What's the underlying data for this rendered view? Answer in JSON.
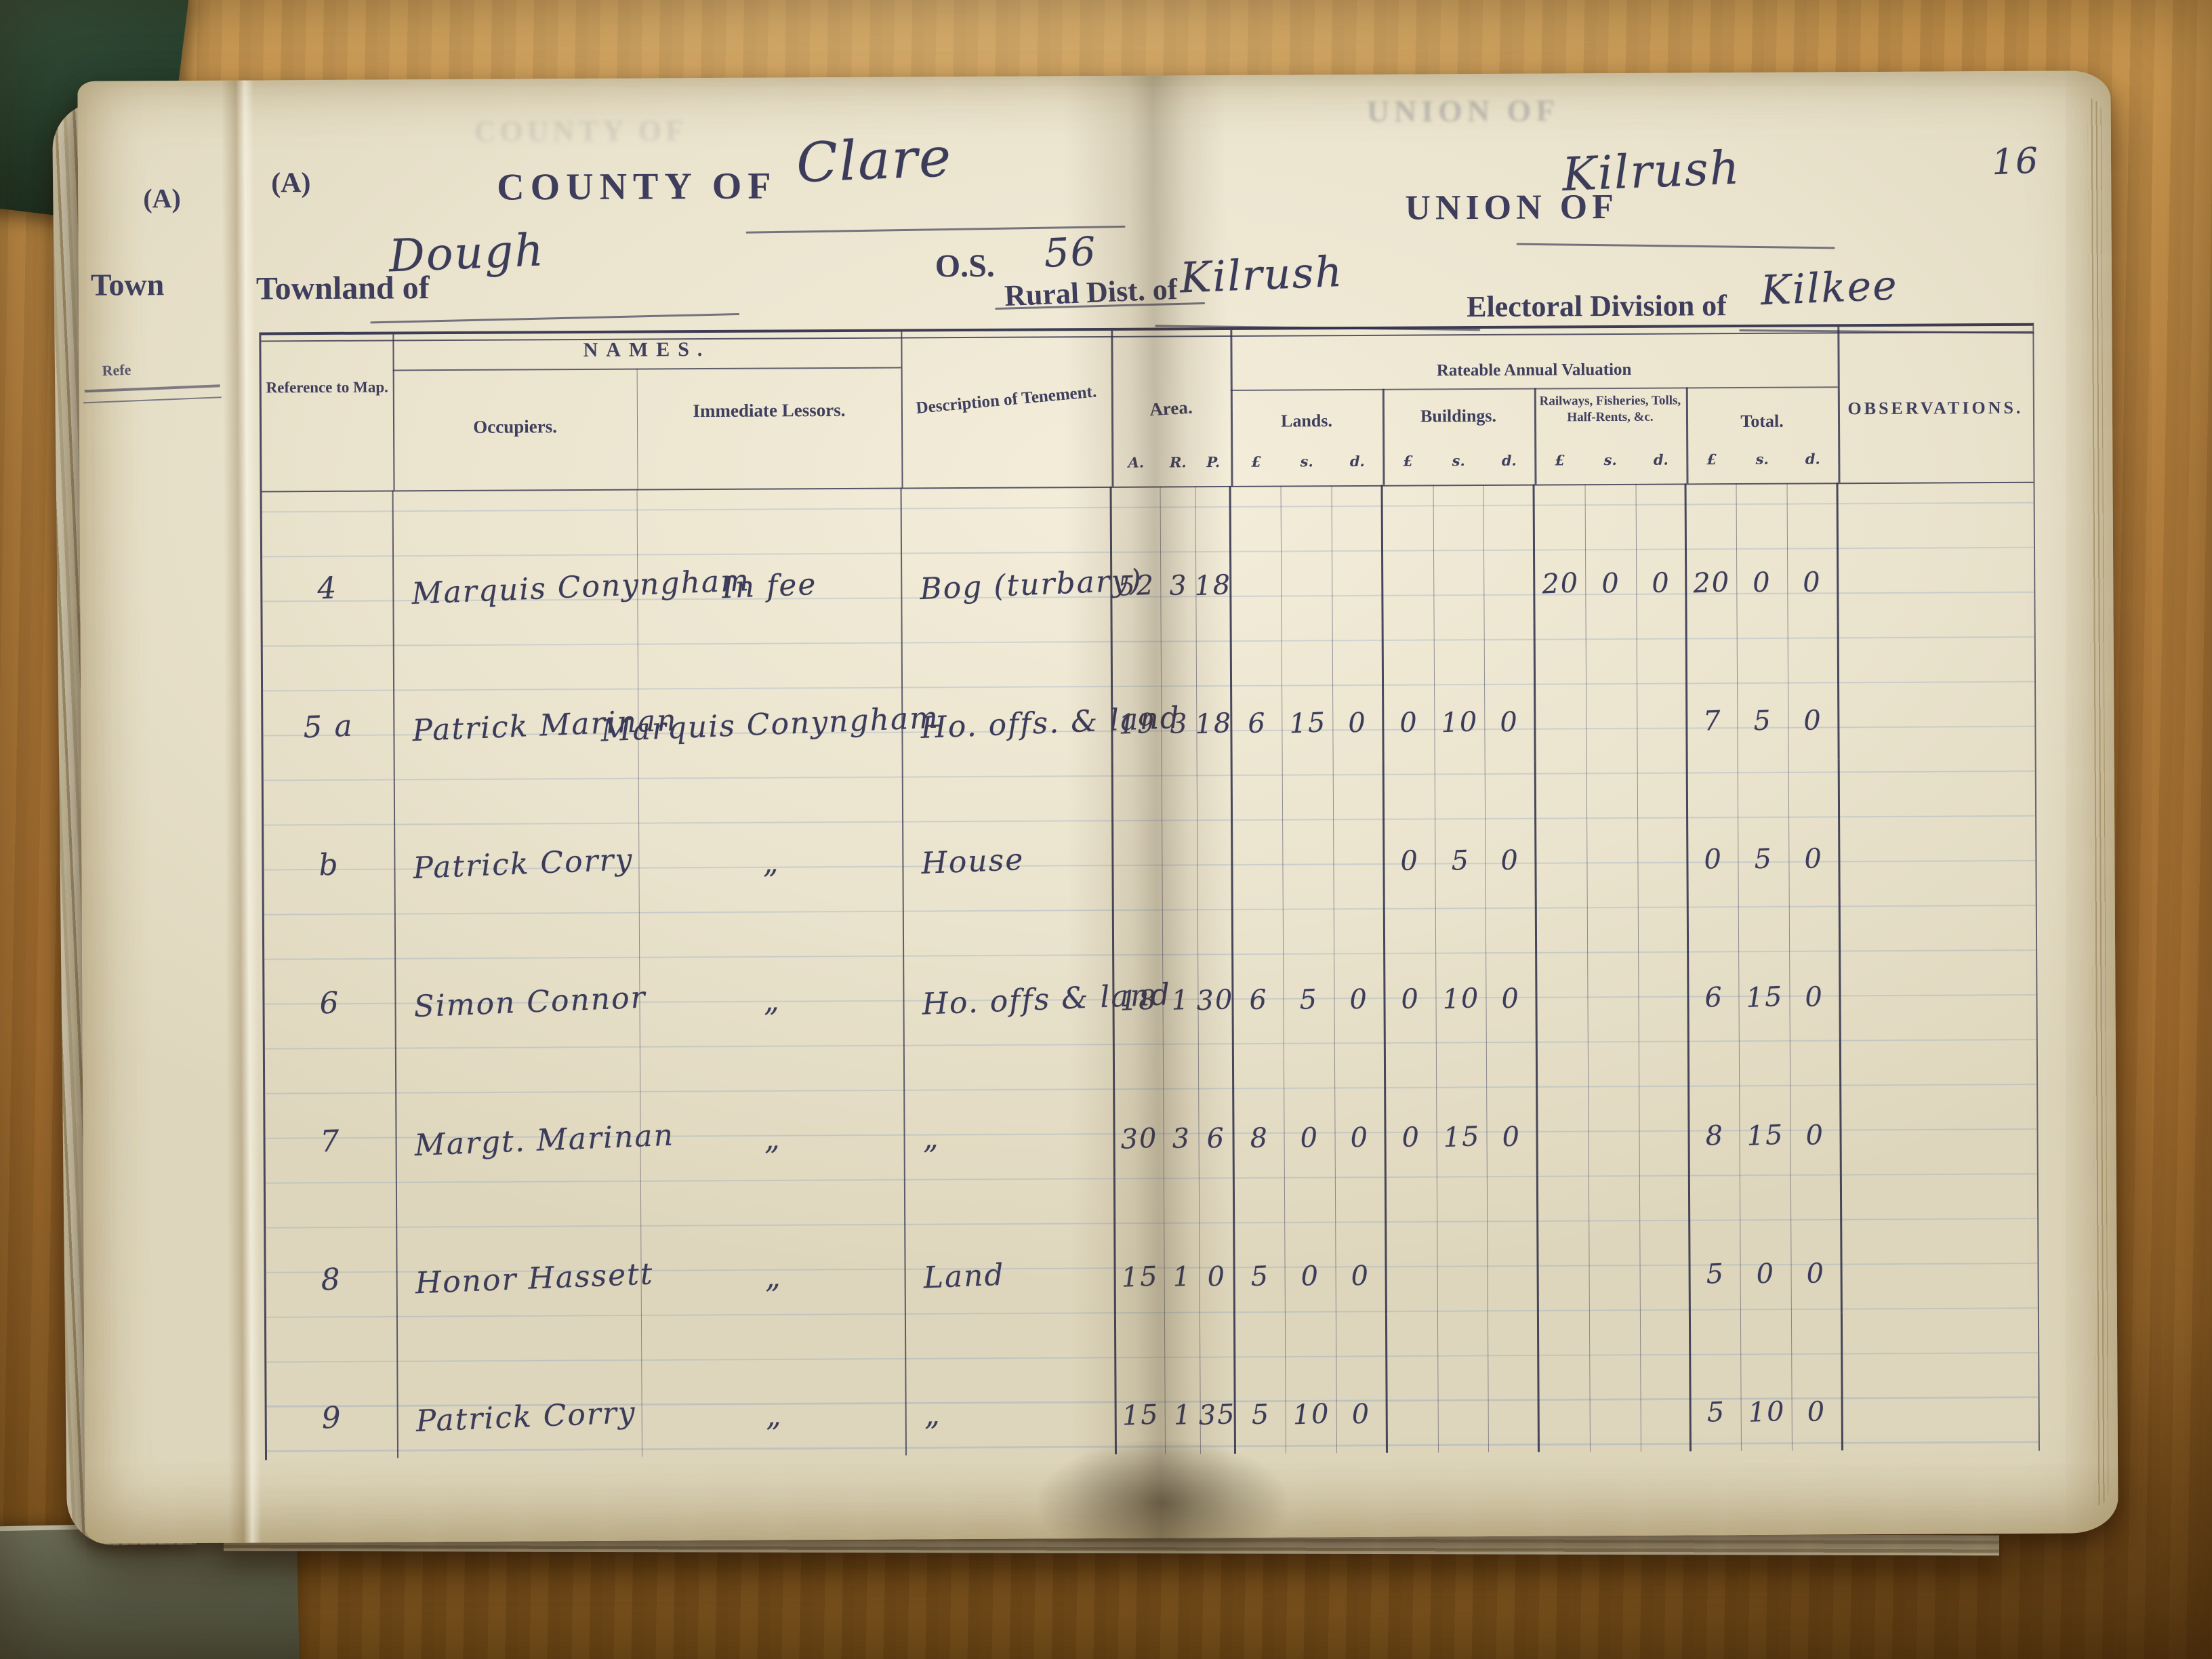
{
  "photo": {
    "page_number": "16"
  },
  "prev_page_fragments": {
    "section_mark": "(A)",
    "townland_cut": "Town",
    "reference_cut": "Refe"
  },
  "ghosts": {
    "union_showthrough": "UNION OF",
    "county_showthrough": "COUNTY OF"
  },
  "header": {
    "section_mark": "(A)",
    "county_label": "COUNTY OF",
    "county_value": "Clare",
    "union_label": "UNION OF",
    "union_value": "Kilrush",
    "townland_label": "Townland of",
    "townland_value": "Dough",
    "os_label": "O.S.",
    "os_value": "56",
    "rural_district_label": "Rural Dist. of",
    "rural_district_value": "Kilrush",
    "electoral_division_label": "Electoral Division of",
    "electoral_division_value": "Kilkee"
  },
  "table": {
    "names_group_label": "NAMES.",
    "valuation_group_label": "Rateable Annual Valuation",
    "col_reference": "Reference to Map.",
    "col_occupiers": "Occupiers.",
    "col_lessors": "Immediate Lessors.",
    "col_description": "Description of Tenement.",
    "col_area": "Area.",
    "area_units": {
      "a": "A.",
      "r": "R.",
      "p": "P."
    },
    "col_lands": "Lands.",
    "col_buildings": "Buildings.",
    "col_railways": "Railways, Fisheries, Tolls, Half-Rents, &c.",
    "col_total": "Total.",
    "money_units": {
      "pounds": "£",
      "shillings": "s.",
      "pence": "d."
    },
    "col_observations": "OBSERVATIONS.",
    "rows": [
      {
        "ref": "4",
        "occupier": "Marquis Conyngham",
        "lessor": "In fee",
        "description": "Bog (turbary)",
        "area": [
          "52",
          "3",
          "18"
        ],
        "lands": [
          "",
          "",
          ""
        ],
        "buildings": [
          "",
          "",
          ""
        ],
        "railways": [
          "20",
          "0",
          "0"
        ],
        "total": [
          "20",
          "0",
          "0"
        ],
        "obs": ""
      },
      {
        "ref": "5 a",
        "occupier": "Patrick Marinan",
        "lessor": "Marquis Conyngham",
        "description": "Ho. offs. & land",
        "area": [
          "19",
          "3",
          "18"
        ],
        "lands": [
          "6",
          "15",
          "0"
        ],
        "buildings": [
          "0",
          "10",
          "0"
        ],
        "railways": [
          "",
          "",
          ""
        ],
        "total": [
          "7",
          "5",
          "0"
        ],
        "obs": ""
      },
      {
        "ref": "b",
        "occupier": "Patrick Corry",
        "lessor": "„",
        "description": "House",
        "area": [
          "",
          "",
          ""
        ],
        "lands": [
          "",
          "",
          ""
        ],
        "buildings": [
          "0",
          "5",
          "0"
        ],
        "railways": [
          "",
          "",
          ""
        ],
        "total": [
          "0",
          "5",
          "0"
        ],
        "obs": ""
      },
      {
        "ref": "6",
        "occupier": "Simon Connor",
        "lessor": "„",
        "description": "Ho. offs & land",
        "area": [
          "18",
          "1",
          "30"
        ],
        "lands": [
          "6",
          "5",
          "0"
        ],
        "buildings": [
          "0",
          "10",
          "0"
        ],
        "railways": [
          "",
          "",
          ""
        ],
        "total": [
          "6",
          "15",
          "0"
        ],
        "obs": ""
      },
      {
        "ref": "7",
        "occupier": "Margt. Marinan",
        "lessor": "„",
        "description": "„",
        "area": [
          "30",
          "3",
          "6"
        ],
        "lands": [
          "8",
          "0",
          "0"
        ],
        "buildings": [
          "0",
          "15",
          "0"
        ],
        "railways": [
          "",
          "",
          ""
        ],
        "total": [
          "8",
          "15",
          "0"
        ],
        "obs": ""
      },
      {
        "ref": "8",
        "occupier": "Honor Hassett",
        "lessor": "„",
        "description": "Land",
        "area": [
          "15",
          "1",
          "0"
        ],
        "lands": [
          "5",
          "0",
          "0"
        ],
        "buildings": [
          "",
          "",
          ""
        ],
        "railways": [
          "",
          "",
          ""
        ],
        "total": [
          "5",
          "0",
          "0"
        ],
        "obs": ""
      },
      {
        "ref": "9",
        "occupier": "Patrick Corry",
        "lessor": "„",
        "description": "„",
        "area": [
          "15",
          "1",
          "35"
        ],
        "lands": [
          "5",
          "10",
          "0"
        ],
        "buildings": [
          "",
          "",
          ""
        ],
        "railways": [
          "",
          "",
          ""
        ],
        "total": [
          "5",
          "10",
          "0"
        ],
        "obs": ""
      }
    ]
  },
  "colors": {
    "ink": "#3b3b5a",
    "paper": "#eae3cd",
    "wood": "#b5813f",
    "ruling_blue": "#7c98c0"
  }
}
